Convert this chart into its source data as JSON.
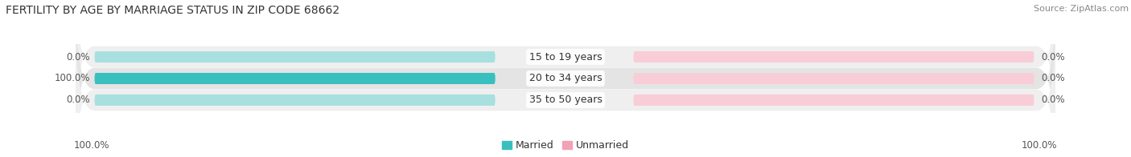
{
  "title": "FERTILITY BY AGE BY MARRIAGE STATUS IN ZIP CODE 68662",
  "source": "Source: ZipAtlas.com",
  "categories": [
    "15 to 19 years",
    "20 to 34 years",
    "35 to 50 years"
  ],
  "married_values": [
    0.0,
    100.0,
    0.0
  ],
  "unmarried_values": [
    0.0,
    0.0,
    0.0
  ],
  "married_color": "#3abfbf",
  "married_bg_color": "#a8e0e0",
  "unmarried_color": "#f4a0b5",
  "unmarried_bg_color": "#f9cdd8",
  "row_bg_even": "#efefef",
  "row_bg_odd": "#e4e4e4",
  "max_val": 100.0,
  "title_fontsize": 10,
  "source_fontsize": 8,
  "label_fontsize": 9,
  "value_fontsize": 8.5,
  "bottom_left_label": "100.0%",
  "bottom_right_label": "100.0%",
  "background_color": "#ffffff"
}
